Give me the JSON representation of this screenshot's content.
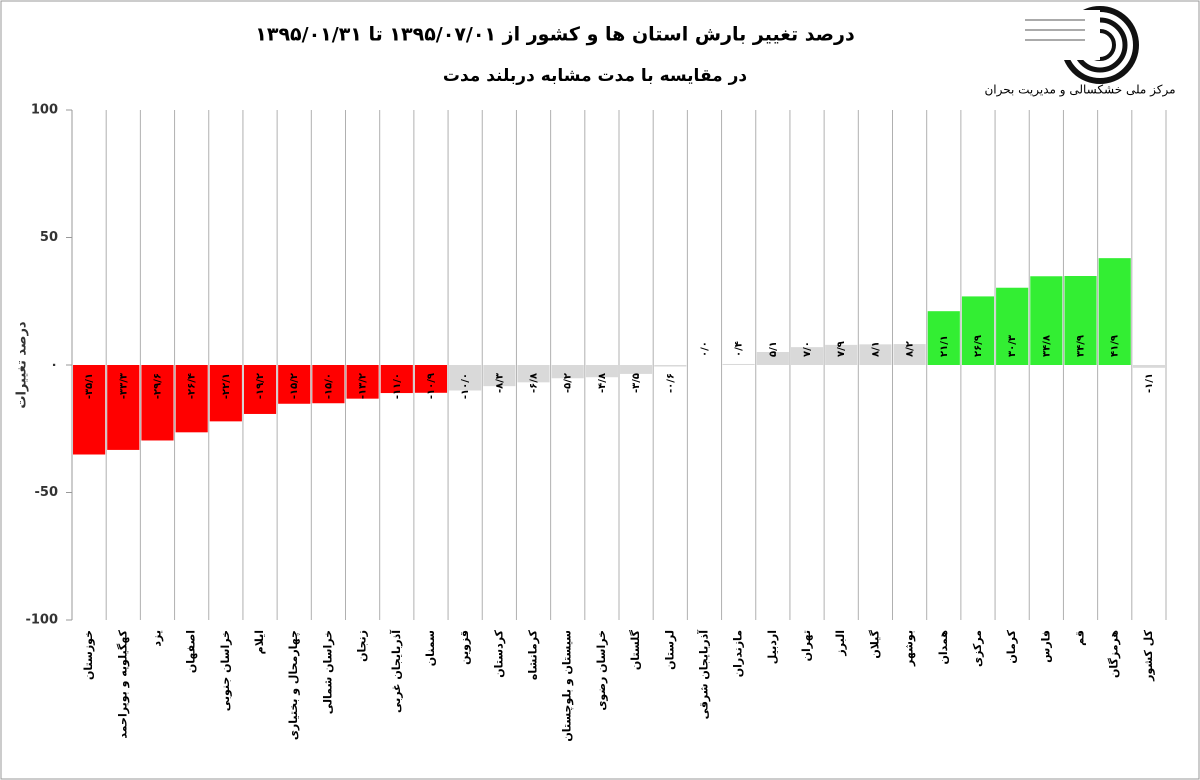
{
  "chart_data": {
    "type": "bar",
    "title": "درصد تغییر بارش استان ها و کشور از ۱۳۹۵/۰۷/۰۱ تا ۱۳۹۵/۰۱/۳۱",
    "subtitle": "در مقایسه با مدت مشابه دربلند مدت",
    "y_label": "درصد تغییرات",
    "source": "مرکز ملی خشکسالی و مدیریت بحران",
    "categories": [
      "خوزستان",
      "کهگیلویه و بویراحمد",
      "یزد",
      "اصفهان",
      "خراسان جنوبی",
      "ایلام",
      "چهارمحال و بختیاری",
      "خراسان شمالی",
      "زنجان",
      "آذربایجان غربی",
      "سمنان",
      "قزوین",
      "کردستان",
      "کرمانشاه",
      "سیستان و بلوچستان",
      "خراسان رضوی",
      "گلستان",
      "لرستان",
      "آذربایجان شرقی",
      "مازندران",
      "اردبیل",
      "تهران",
      "البرز",
      "گیلان",
      "بوشهر",
      "همدان",
      "مرکزی",
      "کرمان",
      "فارس",
      "قم",
      "هرمزگان",
      "کل کشور"
    ],
    "values": [
      -35.1,
      -33.3,
      -29.6,
      -26.4,
      -22.1,
      -19.2,
      -15.2,
      -15.0,
      -13.2,
      -11.0,
      -10.9,
      -10.0,
      -8.3,
      -6.8,
      -5.2,
      -4.8,
      -3.5,
      -0.6,
      0.0,
      0.4,
      5.1,
      7.0,
      7.9,
      8.1,
      8.2,
      21.1,
      26.9,
      30.3,
      34.8,
      34.9,
      41.9,
      -1.1
    ],
    "value_labels": [
      "-۳۵/۱",
      "-۳۳/۳",
      "-۲۹/۶",
      "-۲۶/۴",
      "-۲۲/۱",
      "-۱۹/۲",
      "-۱۵/۲",
      "-۱۵/۰",
      "-۱۳/۲",
      "-۱۱/۰",
      "-۱۰/۹",
      "-۱۰/۰",
      "-۸/۳",
      "-۶/۸",
      "-۵/۲",
      "-۴/۸",
      "-۳/۵",
      "-۰/۶",
      "۰/۰",
      "۰/۴",
      "۵/۱",
      "۷/۰",
      "۷/۹",
      "۸/۱",
      "۸/۲",
      "۲۱/۱",
      "۲۶/۹",
      "۳۰/۳",
      "۳۴/۸",
      "۳۴/۹",
      "۴۱/۹",
      "-۱/۱"
    ],
    "colors": [
      "#ff0000",
      "#ff0000",
      "#ff0000",
      "#ff0000",
      "#ff0000",
      "#ff0000",
      "#ff0000",
      "#ff0000",
      "#ff0000",
      "#ff0000",
      "#ff0000",
      "#d9d9d9",
      "#d9d9d9",
      "#d9d9d9",
      "#d9d9d9",
      "#d9d9d9",
      "#d9d9d9",
      "#d9d9d9",
      "#d9d9d9",
      "#d9d9d9",
      "#d9d9d9",
      "#d9d9d9",
      "#d9d9d9",
      "#d9d9d9",
      "#d9d9d9",
      "#33ee33",
      "#33ee33",
      "#33ee33",
      "#33ee33",
      "#33ee33",
      "#33ee33",
      "#d9d9d9"
    ],
    "ylim": [
      -100,
      100
    ],
    "yticks": [
      -100,
      -50,
      {
        "value": 0,
        "label": "۰"
      },
      50,
      100
    ],
    "grid": true
  }
}
